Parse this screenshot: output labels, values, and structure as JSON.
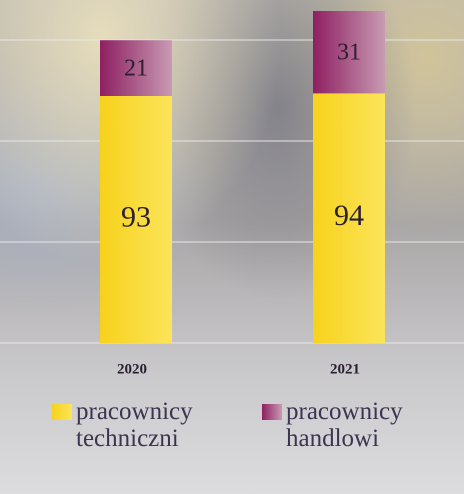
{
  "chart_data": {
    "type": "stacked_bar",
    "categories": [
      "2020",
      "2021"
    ],
    "series": [
      {
        "name": "pracownicy techniczni",
        "color": "#f7d21c",
        "values": [
          93,
          94
        ]
      },
      {
        "name": "pracownicy handlowi",
        "color": "#8e1f62",
        "values": [
          21,
          31
        ]
      }
    ],
    "ylim": [
      0,
      125
    ]
  }
}
